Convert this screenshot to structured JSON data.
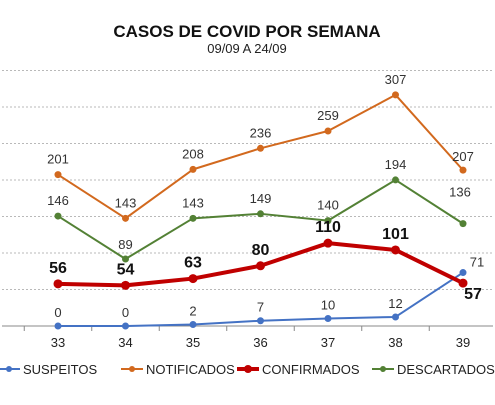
{
  "chart_data": {
    "type": "line",
    "title": "CASOS DE COVID POR SEMANA",
    "subtitle": "09/09 A 24/09",
    "categories": [
      "33",
      "34",
      "35",
      "36",
      "37",
      "38",
      "39"
    ],
    "ylim": [
      0,
      340
    ],
    "grid": true,
    "legend_position": "bottom",
    "series": [
      {
        "name": "SUSPEITOS",
        "values": [
          0,
          0,
          2,
          7,
          10,
          12,
          71
        ],
        "color": "#4472c4",
        "emphasis": false
      },
      {
        "name": "NOTIFICADOS",
        "values": [
          201,
          143,
          208,
          236,
          259,
          307,
          207
        ],
        "color": "#d2691e",
        "emphasis": false
      },
      {
        "name": "CONFIRMADOS",
        "values": [
          56,
          54,
          63,
          80,
          110,
          101,
          57
        ],
        "color": "#c00000",
        "emphasis": true
      },
      {
        "name": "DESCARTADOS",
        "values": [
          146,
          89,
          143,
          149,
          140,
          194,
          136
        ],
        "color": "#538135",
        "emphasis": false
      }
    ]
  }
}
